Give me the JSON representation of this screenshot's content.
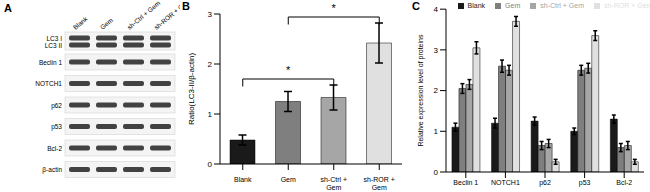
{
  "blot": {
    "panel": "A",
    "lanes": [
      "Blank",
      "Gem",
      "sh-Ctrl + Gem",
      "sh-ROR + Gem"
    ],
    "rows": [
      "LC3 I",
      "LC3 II",
      "Beclin 1",
      "NOTCH1",
      "p62",
      "p53",
      "Bcl-2",
      "β-actin"
    ]
  },
  "chart_data": [
    {
      "panel": "B",
      "type": "bar",
      "y_label": "Ratio(LC3-II/β-actin)",
      "categories": [
        "Blank",
        "Gem",
        "sh-Ctrl + Gem",
        "sh-ROR + Gem"
      ],
      "values": [
        0.48,
        1.25,
        1.33,
        2.42
      ],
      "errors": [
        0.1,
        0.2,
        0.25,
        0.4
      ],
      "colors": [
        "#1a1a1a",
        "#7f7f7f",
        "#a6a6a6",
        "#e0e0e0"
      ],
      "ylim": [
        0,
        3
      ],
      "yticks": [
        0,
        1,
        2,
        3
      ],
      "annotations": [
        {
          "text": "*",
          "between": [
            "Blank",
            "sh-Ctrl + Gem"
          ]
        },
        {
          "text": "*",
          "between": [
            "Gem",
            "sh-ROR + Gem"
          ]
        }
      ]
    },
    {
      "panel": "C",
      "type": "bar",
      "y_label": "Relative expression level of proteins",
      "categories": [
        "Beclin 1",
        "NOTCH1",
        "p62",
        "p53",
        "Bcl-2"
      ],
      "series": [
        {
          "name": "Blank",
          "color": "#1a1a1a",
          "values": [
            1.1,
            1.2,
            1.25,
            1.0,
            1.3
          ],
          "errors": [
            0.1,
            0.12,
            0.1,
            0.08,
            0.1
          ]
        },
        {
          "name": "Gem",
          "color": "#7f7f7f",
          "values": [
            2.05,
            2.6,
            0.65,
            2.5,
            0.6
          ],
          "errors": [
            0.12,
            0.15,
            0.1,
            0.12,
            0.1
          ]
        },
        {
          "name": "sh-Ctrl + Gem",
          "color": "#a6a6a6",
          "values": [
            2.15,
            2.5,
            0.7,
            2.55,
            0.65
          ],
          "errors": [
            0.12,
            0.12,
            0.1,
            0.12,
            0.1
          ]
        },
        {
          "name": "sh-ROR + Gem",
          "color": "#e0e0e0",
          "values": [
            3.05,
            3.7,
            0.25,
            3.35,
            0.25
          ],
          "errors": [
            0.15,
            0.12,
            0.06,
            0.12,
            0.06
          ]
        }
      ],
      "ylim": [
        0,
        4
      ],
      "yticks": [
        0,
        1,
        2,
        3,
        4
      ],
      "legend": "top"
    }
  ]
}
